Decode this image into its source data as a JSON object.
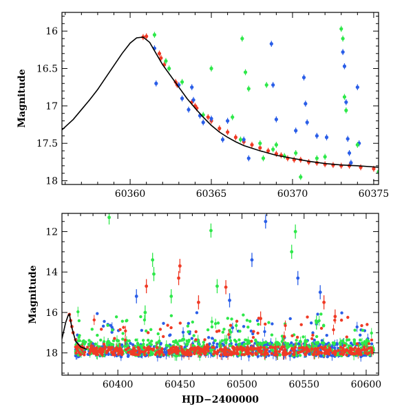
{
  "chart_data": [
    {
      "type": "scatter",
      "title": "",
      "xlabel": "",
      "ylabel": "Magnitude",
      "xlim": [
        60355.8,
        60375.3
      ],
      "ylim": [
        18.05,
        15.75
      ],
      "y_inverted": true,
      "x_ticks": [
        60360,
        60365,
        60370,
        60375
      ],
      "y_ticks": [
        16,
        16.5,
        17,
        17.5,
        18
      ],
      "grid": false,
      "model_curve": {
        "color": "#000000",
        "x": [
          60355.8,
          60356.5,
          60357.0,
          60357.5,
          60358.0,
          60358.5,
          60359.0,
          60359.5,
          60360.0,
          60360.4,
          60360.8,
          60361.2,
          60361.6,
          60362.0,
          60362.5,
          60363.0,
          60363.5,
          60364.0,
          60364.5,
          60365.0,
          60365.5,
          60366.0,
          60366.5,
          60367.0,
          60368.0,
          60369.0,
          60370.0,
          60371.0,
          60372.0,
          60373.0,
          60374.0,
          60375.3
        ],
        "y": [
          17.32,
          17.18,
          17.05,
          16.92,
          16.78,
          16.62,
          16.46,
          16.3,
          16.16,
          16.09,
          16.08,
          16.15,
          16.3,
          16.45,
          16.6,
          16.75,
          16.9,
          17.03,
          17.15,
          17.26,
          17.35,
          17.42,
          17.48,
          17.53,
          17.6,
          17.66,
          17.7,
          17.74,
          17.77,
          17.79,
          17.8,
          17.82
        ]
      },
      "series": [
        {
          "color": "#f03a25",
          "points": [
            [
              60360.8,
              16.08
            ],
            [
              60361.0,
              16.07
            ],
            [
              60361.8,
              16.3
            ],
            [
              60361.9,
              16.36
            ],
            [
              60362.1,
              16.45
            ],
            [
              60362.8,
              16.68
            ],
            [
              60362.9,
              16.72
            ],
            [
              60363.8,
              16.95
            ],
            [
              60364.0,
              17.0
            ],
            [
              60364.1,
              17.03
            ],
            [
              60364.8,
              17.15
            ],
            [
              60365.0,
              17.2
            ],
            [
              60365.5,
              17.3
            ],
            [
              60366.0,
              17.35
            ],
            [
              60366.5,
              17.42
            ],
            [
              60367.0,
              17.48
            ],
            [
              60367.5,
              17.52
            ],
            [
              60368.0,
              17.56
            ],
            [
              60368.5,
              17.6
            ],
            [
              60369.0,
              17.64
            ],
            [
              60369.3,
              17.66
            ],
            [
              60369.7,
              17.7
            ],
            [
              60370.1,
              17.72
            ],
            [
              60370.5,
              17.72
            ],
            [
              60371.0,
              17.75
            ],
            [
              60371.5,
              17.76
            ],
            [
              60372.0,
              17.78
            ],
            [
              60372.5,
              17.79
            ],
            [
              60373.0,
              17.8
            ],
            [
              60373.5,
              17.8
            ],
            [
              60374.2,
              17.82
            ],
            [
              60375.0,
              17.84
            ]
          ]
        },
        {
          "color": "#2a5ee8",
          "points": [
            [
              60361.5,
              16.23
            ],
            [
              60361.6,
              16.7
            ],
            [
              60363.0,
              16.72
            ],
            [
              60363.2,
              16.9
            ],
            [
              60363.6,
              17.05
            ],
            [
              60363.8,
              16.75
            ],
            [
              60363.9,
              16.92
            ],
            [
              60364.3,
              17.13
            ],
            [
              60364.5,
              17.22
            ],
            [
              60365.0,
              17.17
            ],
            [
              60365.7,
              17.45
            ],
            [
              60366.0,
              17.2
            ],
            [
              60367.0,
              17.45
            ],
            [
              60367.3,
              17.7
            ],
            [
              60368.7,
              16.17
            ],
            [
              60368.8,
              16.72
            ],
            [
              60369.0,
              17.18
            ],
            [
              60370.2,
              17.33
            ],
            [
              60370.7,
              16.62
            ],
            [
              60370.8,
              16.97
            ],
            [
              60370.9,
              17.22
            ],
            [
              60371.5,
              17.4
            ],
            [
              60372.1,
              17.42
            ],
            [
              60373.1,
              16.28
            ],
            [
              60373.2,
              16.47
            ],
            [
              60373.3,
              16.95
            ],
            [
              60373.4,
              17.44
            ],
            [
              60373.5,
              17.63
            ],
            [
              60373.6,
              17.76
            ],
            [
              60374.0,
              16.75
            ],
            [
              60374.1,
              17.5
            ]
          ]
        },
        {
          "color": "#2ee84a",
          "points": [
            [
              60361.5,
              16.05
            ],
            [
              60362.2,
              16.4
            ],
            [
              60362.4,
              16.5
            ],
            [
              60363.2,
              16.68
            ],
            [
              60364.5,
              17.12
            ],
            [
              60365.0,
              16.5
            ],
            [
              60366.3,
              17.15
            ],
            [
              60366.8,
              17.45
            ],
            [
              60366.9,
              16.1
            ],
            [
              60367.1,
              16.55
            ],
            [
              60367.3,
              16.77
            ],
            [
              60368.0,
              17.5
            ],
            [
              60368.2,
              17.7
            ],
            [
              60368.4,
              16.72
            ],
            [
              60368.8,
              17.58
            ],
            [
              60369.0,
              17.52
            ],
            [
              60369.5,
              17.67
            ],
            [
              60370.2,
              17.63
            ],
            [
              60370.5,
              17.95
            ],
            [
              60371.5,
              17.7
            ],
            [
              60372.0,
              17.68
            ],
            [
              60373.0,
              15.97
            ],
            [
              60373.1,
              16.1
            ],
            [
              60373.2,
              16.88
            ],
            [
              60373.3,
              17.06
            ],
            [
              60374.0,
              17.52
            ],
            [
              60375.3,
              17.88
            ]
          ]
        }
      ]
    },
    {
      "type": "scatter",
      "title": "",
      "xlabel": "HJD−2400000",
      "ylabel": "Magnitude",
      "xlim": [
        60355,
        60610
      ],
      "ylim": [
        19.1,
        11.1
      ],
      "y_inverted": true,
      "x_ticks": [
        60400,
        60450,
        60500,
        60550,
        60600
      ],
      "y_ticks": [
        12,
        14,
        16,
        18
      ],
      "grid": false,
      "model_curve": {
        "color": "#000000",
        "x": [
          60355,
          60358,
          60360,
          60361,
          60363,
          60366,
          60370,
          60375
        ],
        "y": [
          17.3,
          16.5,
          16.15,
          16.08,
          16.75,
          17.42,
          17.7,
          17.82
        ]
      },
      "outliers": [
        {
          "color": "#2ee84a",
          "x": 60393,
          "y": 11.3
        },
        {
          "color": "#2ee84a",
          "x": 60422,
          "y": 16.0
        },
        {
          "color": "#2ee84a",
          "x": 60428,
          "y": 13.4
        },
        {
          "color": "#2ee84a",
          "x": 60429,
          "y": 14.1
        },
        {
          "color": "#2ee84a",
          "x": 60443,
          "y": 15.2
        },
        {
          "color": "#2ee84a",
          "x": 60475,
          "y": 11.95
        },
        {
          "color": "#2ee84a",
          "x": 60480,
          "y": 14.7
        },
        {
          "color": "#2ee84a",
          "x": 60540,
          "y": 13.0
        },
        {
          "color": "#2ee84a",
          "x": 60543,
          "y": 12.0
        },
        {
          "color": "#2ee84a",
          "x": 60560,
          "y": 16.5
        },
        {
          "color": "#f03a25",
          "x": 60423,
          "y": 14.7
        },
        {
          "color": "#f03a25",
          "x": 60449,
          "y": 14.3
        },
        {
          "color": "#f03a25",
          "x": 60450,
          "y": 13.7
        },
        {
          "color": "#f03a25",
          "x": 60465,
          "y": 15.5
        },
        {
          "color": "#f03a25",
          "x": 60487,
          "y": 14.75
        },
        {
          "color": "#f03a25",
          "x": 60515,
          "y": 16.3
        },
        {
          "color": "#f03a25",
          "x": 60566,
          "y": 15.5
        },
        {
          "color": "#f03a25",
          "x": 60575,
          "y": 16.2
        },
        {
          "color": "#2a5ee8",
          "x": 60415,
          "y": 15.2
        },
        {
          "color": "#2a5ee8",
          "x": 60490,
          "y": 15.4
        },
        {
          "color": "#2a5ee8",
          "x": 60508,
          "y": 13.4
        },
        {
          "color": "#2a5ee8",
          "x": 60519,
          "y": 11.5
        },
        {
          "color": "#2a5ee8",
          "x": 60545,
          "y": 14.3
        },
        {
          "color": "#2a5ee8",
          "x": 60563,
          "y": 15.0
        }
      ],
      "series": [
        {
          "color": "#2a5ee8",
          "baseline": 17.85,
          "scatter": 0.35
        },
        {
          "color": "#2ee84a",
          "baseline": 17.75,
          "scatter": 0.4
        },
        {
          "color": "#f03a25",
          "baseline": 17.9,
          "scatter": 0.2
        }
      ]
    }
  ]
}
